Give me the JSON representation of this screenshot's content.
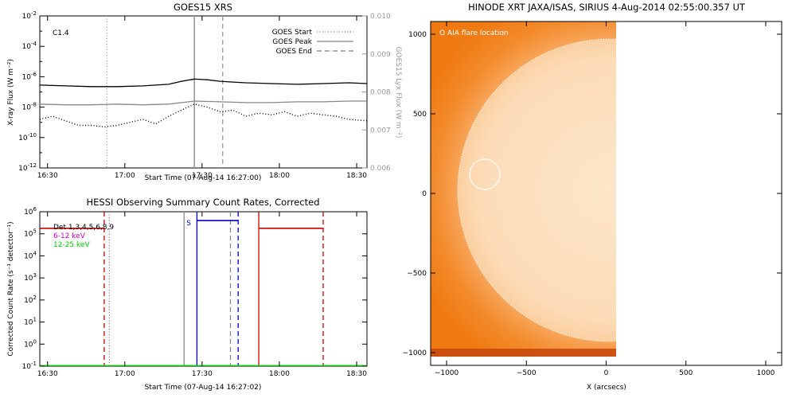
{
  "chart_data": [
    {
      "type": "line",
      "title": "GOES15 XRS",
      "xlabel": "Start Time (07-Aug-14 16:27:00)",
      "ylabel": "X-ray Flux (W m⁻²)",
      "y2label": "GOES15 Lyx Flux (W m⁻²)",
      "xlim_minutes": [
        0,
        127
      ],
      "x_ticks": [
        {
          "label": "16:30",
          "minute": 3
        },
        {
          "label": "17:00",
          "minute": 33
        },
        {
          "label": "17:30",
          "minute": 63
        },
        {
          "label": "18:00",
          "minute": 93
        },
        {
          "label": "18:30",
          "minute": 123
        }
      ],
      "y_scale": "log",
      "ylim_exp": [
        -12,
        -2
      ],
      "y_ticks": [
        {
          "base": "10",
          "exp": "-2",
          "value": -2
        },
        {
          "base": "10",
          "exp": "-4",
          "value": -4
        },
        {
          "base": "10",
          "exp": "-6",
          "value": -6
        },
        {
          "base": "10",
          "exp": "-8",
          "value": -8
        },
        {
          "base": "10",
          "exp": "-10",
          "value": -10
        },
        {
          "base": "10",
          "exp": "-12",
          "value": -12
        }
      ],
      "y2lim": [
        0.006,
        0.01
      ],
      "y2_ticks": [
        "0.010",
        "0.009",
        "0.008",
        "0.007",
        "0.006"
      ],
      "y2_tick_values": [
        0.01,
        0.009,
        0.008,
        0.007,
        0.006
      ],
      "annotation": "C1.4",
      "legend": {
        "placement": "top-right",
        "entries": [
          {
            "label": "GOES Start",
            "style": "dotted"
          },
          {
            "label": "GOES Peak",
            "style": "solid"
          },
          {
            "label": "GOES End",
            "style": "dashed"
          }
        ]
      },
      "vlines": [
        {
          "minute": 26,
          "style": "dotted",
          "color": "#999999"
        },
        {
          "minute": 60,
          "style": "solid",
          "color": "#999999"
        },
        {
          "minute": 71,
          "style": "dashed",
          "color": "#999999"
        }
      ],
      "series": [
        {
          "color": "#000000",
          "style": "solid",
          "x": [
            0,
            10,
            20,
            30,
            40,
            50,
            55,
            60,
            65,
            70,
            75,
            80,
            90,
            100,
            110,
            120,
            127
          ],
          "y_exp": [
            -6.55,
            -6.6,
            -6.65,
            -6.65,
            -6.6,
            -6.5,
            -6.3,
            -6.15,
            -6.2,
            -6.3,
            -6.35,
            -6.4,
            -6.45,
            -6.5,
            -6.45,
            -6.4,
            -6.45
          ]
        },
        {
          "color": "#888888",
          "style": "solid",
          "x": [
            0,
            10,
            20,
            30,
            40,
            50,
            60,
            70,
            80,
            90,
            100,
            110,
            120,
            127
          ],
          "y_exp": [
            -7.8,
            -7.85,
            -7.85,
            -7.8,
            -7.85,
            -7.8,
            -7.6,
            -7.65,
            -7.7,
            -7.7,
            -7.65,
            -7.65,
            -7.6,
            -7.6
          ]
        },
        {
          "color": "#000000",
          "style": "dotted",
          "x": [
            0,
            5,
            10,
            15,
            20,
            25,
            30,
            35,
            40,
            45,
            50,
            55,
            60,
            65,
            70,
            75,
            80,
            85,
            90,
            95,
            100,
            105,
            110,
            115,
            120,
            127
          ],
          "y_exp": [
            -8.8,
            -8.6,
            -8.9,
            -9.2,
            -9.2,
            -9.3,
            -9.2,
            -9.0,
            -8.8,
            -9.1,
            -8.6,
            -8.2,
            -7.8,
            -8.0,
            -8.3,
            -8.2,
            -8.6,
            -8.4,
            -8.5,
            -8.3,
            -8.6,
            -8.4,
            -8.5,
            -8.6,
            -8.8,
            -8.9
          ]
        }
      ]
    },
    {
      "type": "line",
      "title": "HESSI Observing Summary Count Rates, Corrected",
      "xlabel": "Start Time (07-Aug-14 16:27:02)",
      "ylabel": "Corrected Count Rate (s⁻¹ detector⁻¹)",
      "xlim_minutes": [
        0,
        127
      ],
      "x_ticks": [
        {
          "label": "16:30",
          "minute": 3
        },
        {
          "label": "17:00",
          "minute": 33
        },
        {
          "label": "17:30",
          "minute": 63
        },
        {
          "label": "18:00",
          "minute": 93
        },
        {
          "label": "18:30",
          "minute": 123
        }
      ],
      "y_scale": "log",
      "ylim_exp": [
        -1,
        6
      ],
      "y_ticks": [
        {
          "base": "10",
          "exp": "6",
          "value": 6
        },
        {
          "base": "10",
          "exp": "5",
          "value": 5
        },
        {
          "base": "10",
          "exp": "4",
          "value": 4
        },
        {
          "base": "10",
          "exp": "3",
          "value": 3
        },
        {
          "base": "10",
          "exp": "2",
          "value": 2
        },
        {
          "base": "10",
          "exp": "1",
          "value": 1
        },
        {
          "base": "10",
          "exp": "0",
          "value": 0
        },
        {
          "base": "10",
          "exp": "-1",
          "value": -1
        }
      ],
      "legend": {
        "placement": "top-left",
        "entries": [
          {
            "label": "Det 1,3,4,5,6,8,9",
            "color": "#000000"
          },
          {
            "label": "6-12 keV",
            "color": "#cc00cc"
          },
          {
            "label": "12-25 keV",
            "color": "#00cc00"
          }
        ]
      },
      "marker_label": "S",
      "vlines": [
        {
          "minute": 25,
          "style": "dashed",
          "color": "#cc0000"
        },
        {
          "minute": 27,
          "style": "dotted",
          "color": "#888888"
        },
        {
          "minute": 56,
          "style": "solid",
          "color": "#888888"
        },
        {
          "minute": 61,
          "style": "solid",
          "color": "#0000cc"
        },
        {
          "minute": 74,
          "style": "dashed",
          "color": "#888888"
        },
        {
          "minute": 77,
          "style": "dashed",
          "color": "#0000cc"
        },
        {
          "minute": 85,
          "style": "solid",
          "color": "#cc0000"
        },
        {
          "minute": 110,
          "style": "dashed",
          "color": "#cc0000"
        }
      ],
      "segments": [
        {
          "x": [
            0,
            25
          ],
          "y_exp": [
            5.25,
            5.25
          ],
          "color": "#cc0000"
        },
        {
          "x": [
            61,
            77
          ],
          "y_exp": [
            5.6,
            5.6
          ],
          "color": "#0000cc"
        },
        {
          "x": [
            85,
            110
          ],
          "y_exp": [
            5.25,
            5.25
          ],
          "color": "#cc0000"
        },
        {
          "x": [
            0,
            127
          ],
          "y_exp": [
            -0.98,
            -0.98
          ],
          "color": "#00cc00"
        }
      ]
    },
    {
      "type": "heatmap",
      "title": "HINODE XRT JAXA/ISAS, SIRIUS  4-Aug-2014 02:55:00.357 UT",
      "xlabel": "X (arcsecs)",
      "ylabel": "",
      "xlim": [
        -1100,
        1100
      ],
      "ylim": [
        -1080,
        1080
      ],
      "x_ticks": [
        -1000,
        -500,
        0,
        500,
        1000
      ],
      "y_ticks": [
        1000,
        500,
        0,
        -500,
        -1000
      ],
      "image_extent_x": [
        -1100,
        70
      ],
      "image_extent_y": [
        -1050,
        1050
      ],
      "disk_center": [
        0,
        0
      ],
      "disk_radius_arcsec": 950,
      "flare_location": {
        "x": -760,
        "y": 120,
        "radius": 95
      },
      "annotation": "O AIA flare location",
      "colors": {
        "outer": "#f07a0a",
        "limb": "#f8a050",
        "disk": "#fde0be"
      }
    }
  ]
}
